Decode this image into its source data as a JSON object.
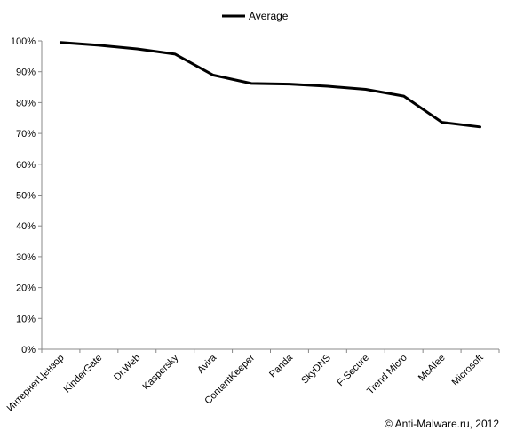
{
  "chart_data": {
    "type": "line",
    "categories": [
      "ИнтернетЦензор",
      "KinderGate",
      "Dr.Web",
      "Kaspersky",
      "Avira",
      "ContentKeeper",
      "Panda",
      "SkyDNS",
      "F-Secure",
      "Trend Micro",
      "McAfee",
      "Microsoft"
    ],
    "series": [
      {
        "name": "Average",
        "values": [
          99.5,
          98.6,
          97.4,
          95.7,
          88.9,
          86.2,
          86.0,
          85.3,
          84.3,
          82.1,
          73.6,
          72.1
        ],
        "color": "#000000"
      }
    ],
    "ylim": [
      0,
      100
    ],
    "yticks": [
      "0%",
      "10%",
      "20%",
      "30%",
      "40%",
      "50%",
      "60%",
      "70%",
      "80%",
      "90%",
      "100%"
    ],
    "legend_position": "top-center",
    "grid": false
  },
  "credit": "© Anti-Malware.ru,  2012"
}
